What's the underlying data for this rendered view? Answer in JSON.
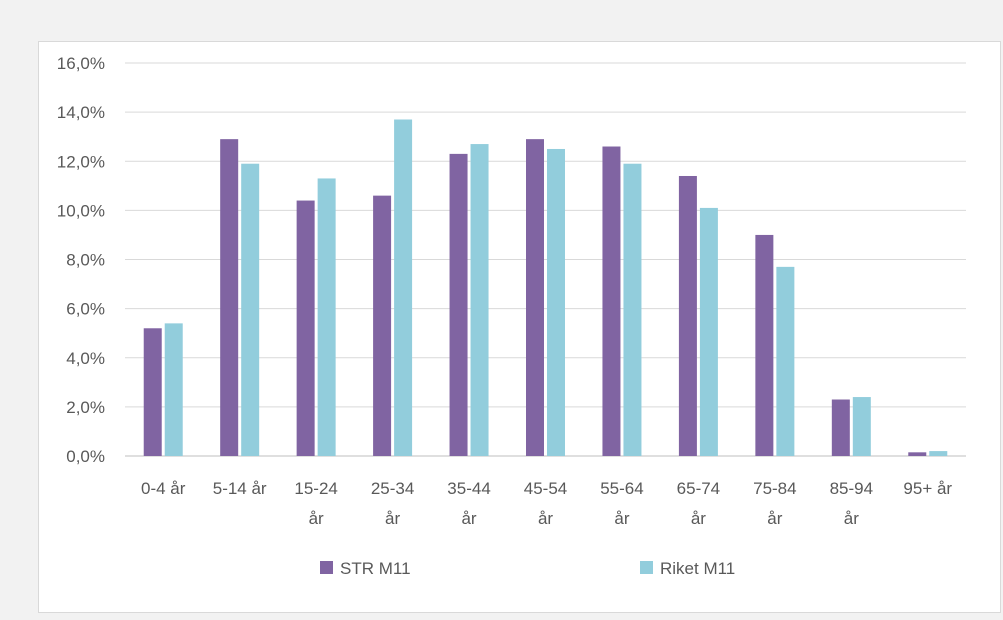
{
  "chart_data": {
    "type": "bar",
    "categories": [
      [
        "0-4 år"
      ],
      [
        "5-14 år"
      ],
      [
        "15-24",
        "år"
      ],
      [
        "25-34",
        "år"
      ],
      [
        "35-44",
        "år"
      ],
      [
        "45-54",
        "år"
      ],
      [
        "55-64",
        "år"
      ],
      [
        "65-74",
        "år"
      ],
      [
        "75-84",
        "år"
      ],
      [
        "85-94",
        "år"
      ],
      [
        "95+ år"
      ]
    ],
    "series": [
      {
        "name": "STR M11",
        "color": "#8064a2",
        "values": [
          5.2,
          12.9,
          10.4,
          10.6,
          12.3,
          12.9,
          12.6,
          11.4,
          9.0,
          2.3,
          0.15
        ]
      },
      {
        "name": "Riket M11",
        "color": "#92cddc",
        "values": [
          5.4,
          11.9,
          11.3,
          13.7,
          12.7,
          12.5,
          11.9,
          10.1,
          7.7,
          2.4,
          0.2
        ]
      }
    ],
    "ylim": [
      0,
      16
    ],
    "yticks": [
      "0,0%",
      "2,0%",
      "4,0%",
      "6,0%",
      "8,0%",
      "10,0%",
      "12,0%",
      "14,0%",
      "16,0%"
    ],
    "grid": true,
    "legend_position": "bottom"
  }
}
